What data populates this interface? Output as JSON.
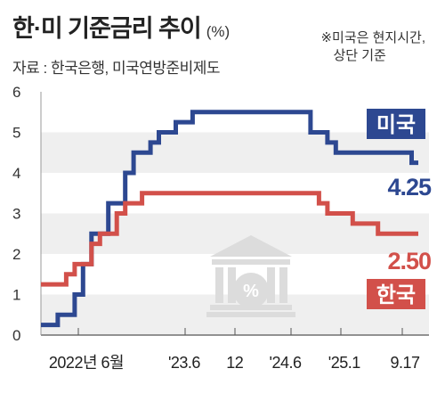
{
  "header": {
    "title": "한·미 기준금리 추이",
    "unit": "(%)",
    "source": "자료 : 한국은행, 미국연방준비제도",
    "note_line1": "※미국은 현지시간,",
    "note_line2": "상단 기준"
  },
  "colors": {
    "us": "#2d4891",
    "kr": "#d2504a",
    "grid_band": "#efefef",
    "background": "#ffffff"
  },
  "chart_data": {
    "type": "line",
    "step": true,
    "x_tick_labels": [
      "2022년 6월",
      "'23.6",
      "12",
      "'24.6",
      "'25.1",
      "9.17"
    ],
    "y_ticks": [
      0,
      1,
      2,
      3,
      4,
      5,
      6
    ],
    "ylim": [
      0,
      6
    ],
    "grid": "alternating-bands",
    "series": [
      {
        "name": "미국",
        "color": "#2d4891",
        "end_label": "4.25",
        "points": [
          [
            "2022-01",
            0.25
          ],
          [
            "2022-03",
            0.5
          ],
          [
            "2022-05",
            1.0
          ],
          [
            "2022-06",
            1.75
          ],
          [
            "2022-07",
            2.5
          ],
          [
            "2022-09",
            3.25
          ],
          [
            "2022-11",
            4.0
          ],
          [
            "2022-12",
            4.5
          ],
          [
            "2023-02",
            4.75
          ],
          [
            "2023-03",
            5.0
          ],
          [
            "2023-05",
            5.25
          ],
          [
            "2023-07",
            5.5
          ],
          [
            "2024-09",
            5.0
          ],
          [
            "2024-11",
            4.75
          ],
          [
            "2024-12",
            4.5
          ],
          [
            "2025-09",
            4.25
          ]
        ]
      },
      {
        "name": "한국",
        "color": "#d2504a",
        "end_label": "2.50",
        "points": [
          [
            "2022-01",
            1.25
          ],
          [
            "2022-04",
            1.5
          ],
          [
            "2022-05",
            1.75
          ],
          [
            "2022-07",
            2.25
          ],
          [
            "2022-08",
            2.5
          ],
          [
            "2022-10",
            3.0
          ],
          [
            "2022-11",
            3.25
          ],
          [
            "2023-01",
            3.5
          ],
          [
            "2024-10",
            3.25
          ],
          [
            "2024-11",
            3.0
          ],
          [
            "2025-02",
            2.75
          ],
          [
            "2025-05",
            2.5
          ]
        ]
      }
    ]
  }
}
